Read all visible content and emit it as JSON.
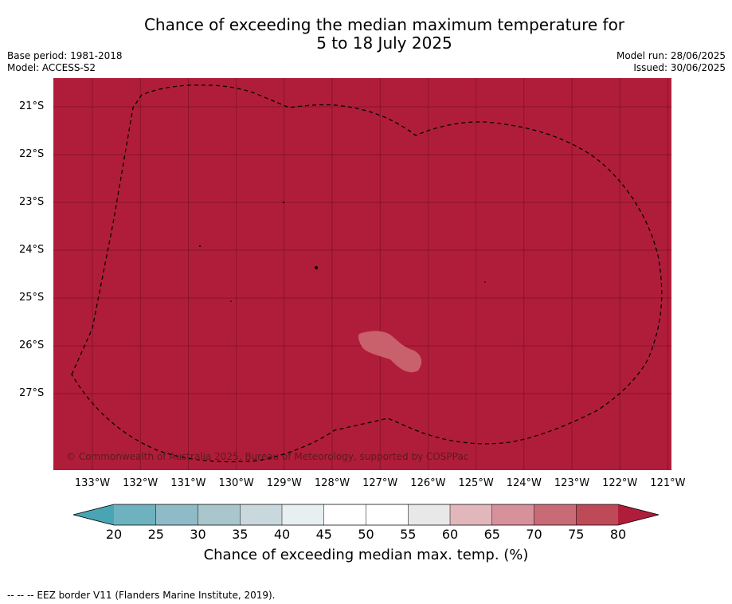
{
  "title_line1": "Chance of exceeding the median maximum temperature for",
  "title_line2": "5 to 18 July 2025",
  "base_period": "Base period: 1981-2018",
  "model": "Model: ACCESS-S2",
  "model_run": "Model run: 28/06/2025",
  "issued": "Issued: 30/06/2025",
  "lat_ticks": [
    "21°S",
    "22°S",
    "23°S",
    "24°S",
    "25°S",
    "26°S",
    "27°S"
  ],
  "lon_ticks": [
    "133°W",
    "132°W",
    "131°W",
    "130°W",
    "129°W",
    "128°W",
    "127°W",
    "126°W",
    "125°W",
    "124°W",
    "123°W",
    "122°W",
    "121°W"
  ],
  "copyright": "© Commonwealth of Australia 2025, Bureau of Meteorology, supported by COSPPac",
  "colorbar": {
    "ticks": [
      "20",
      "25",
      "30",
      "35",
      "40",
      "45",
      "50",
      "55",
      "60",
      "65",
      "70",
      "75",
      "80"
    ],
    "colors": [
      "#6eb2c0",
      "#8fbbc6",
      "#a8c6cc",
      "#c8d8dc",
      "#e8eff1",
      "#ffffff",
      "#ffffff",
      "#e8e8e8",
      "#e2b7bc",
      "#d6919a",
      "#c96b76",
      "#be4a58"
    ],
    "under_color": "#49a5b4",
    "over_color": "#b01d3a",
    "label": "Chance of exceeding median max. temp. (%)"
  },
  "map_fill_color": "#b01d3a",
  "patch_color": "#c9616d",
  "footer": "--  --  -- EEZ border V11 (Flanders Marine Institute, 2019)."
}
